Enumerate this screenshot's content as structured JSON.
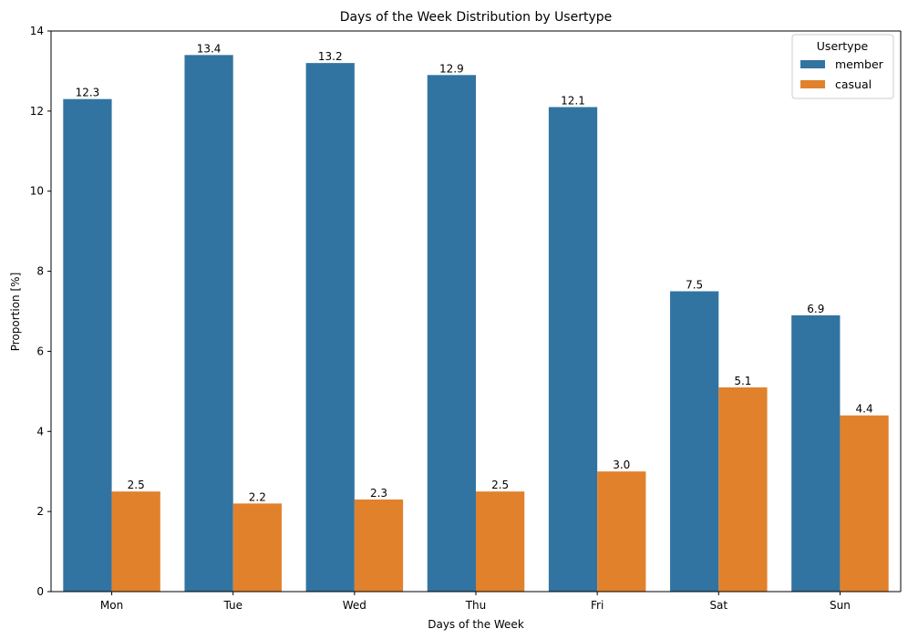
{
  "chart_data": {
    "type": "bar",
    "title": "Days of the Week Distribution by Usertype",
    "xlabel": "Days of the Week",
    "ylabel": "Proportion [%]",
    "categories": [
      "Mon",
      "Tue",
      "Wed",
      "Thu",
      "Fri",
      "Sat",
      "Sun"
    ],
    "series": [
      {
        "name": "member",
        "color": "#3274a1",
        "values": [
          12.3,
          13.4,
          13.2,
          12.9,
          12.1,
          7.5,
          6.9
        ],
        "labels": [
          "12.3",
          "13.4",
          "13.2",
          "12.9",
          "12.1",
          "7.5",
          "6.9"
        ]
      },
      {
        "name": "casual",
        "color": "#e1812c",
        "values": [
          2.5,
          2.2,
          2.3,
          2.5,
          3.0,
          5.1,
          4.4
        ],
        "labels": [
          "2.5",
          "2.2",
          "2.3",
          "2.5",
          "3.0",
          "5.1",
          "4.4"
        ]
      }
    ],
    "ylim": [
      0,
      14
    ],
    "yticks": [
      0,
      2,
      4,
      6,
      8,
      10,
      12,
      14
    ],
    "ytick_labels": [
      "0",
      "2",
      "4",
      "6",
      "8",
      "10",
      "12",
      "14"
    ],
    "grid": false,
    "legend": {
      "title": "Usertype",
      "position": "top-right"
    }
  }
}
